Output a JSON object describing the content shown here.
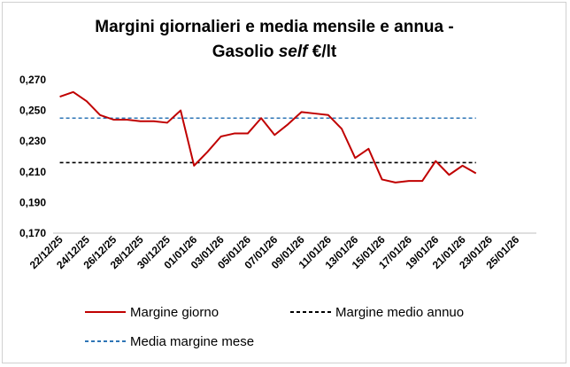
{
  "chart_data": {
    "type": "line",
    "title_line1": "Margini giornalieri e media mensile e annua -",
    "title_line2_prefix": "Gasolio ",
    "title_line2_italic": "self",
    "title_line2_suffix": " €/lt",
    "xlabel": "",
    "ylabel": "",
    "ylim": [
      0.17,
      0.27
    ],
    "yticks": [
      "0,270",
      "0,250",
      "0,230",
      "0,210",
      "0,190",
      "0,170"
    ],
    "ytick_values": [
      0.27,
      0.25,
      0.23,
      0.21,
      0.19,
      0.17
    ],
    "x_dates": [
      "22/12/25",
      "23/12/25",
      "24/12/25",
      "25/12/25",
      "26/12/25",
      "27/12/25",
      "28/12/25",
      "29/12/25",
      "30/12/25",
      "31/12/25",
      "01/01/26",
      "02/01/26",
      "03/01/26",
      "04/01/26",
      "05/01/26",
      "06/01/26",
      "07/01/26",
      "08/01/26",
      "09/01/26",
      "10/01/26",
      "11/01/26",
      "12/01/26",
      "13/01/26",
      "14/01/26",
      "15/01/26",
      "16/01/26",
      "17/01/26",
      "18/01/26",
      "19/01/26",
      "20/01/26",
      "21/01/26",
      "22/01/26",
      "23/01/26",
      "24/01/26",
      "25/01/26",
      "26/01/26"
    ],
    "xtick_labels": [
      "22/12/25",
      "24/12/25",
      "26/12/25",
      "28/12/25",
      "30/12/25",
      "01/01/26",
      "03/01/26",
      "05/01/26",
      "07/01/26",
      "09/01/26",
      "11/01/26",
      "13/01/26",
      "15/01/26",
      "17/01/26",
      "19/01/26",
      "21/01/26",
      "23/01/26",
      "25/01/26"
    ],
    "series": [
      {
        "name": "Margine giorno",
        "color": "#c00000",
        "style": "solid",
        "values": [
          0.259,
          0.262,
          0.256,
          0.247,
          0.244,
          0.244,
          0.243,
          0.243,
          0.242,
          0.25,
          0.214,
          0.223,
          0.233,
          0.235,
          0.235,
          0.245,
          0.234,
          0.241,
          0.249,
          0.248,
          0.247,
          0.238,
          0.219,
          0.225,
          0.205,
          0.203,
          0.204,
          0.204,
          0.217,
          0.208,
          0.214,
          0.209,
          null,
          null,
          null,
          null
        ]
      },
      {
        "name": "Margine medio annuo",
        "color": "#000000",
        "style": "dashed",
        "values": [
          0.216,
          0.216,
          0.216,
          0.216,
          0.216,
          0.216,
          0.216,
          0.216,
          0.216,
          0.216,
          0.216,
          0.216,
          0.216,
          0.216,
          0.216,
          0.216,
          0.216,
          0.216,
          0.216,
          0.216,
          0.216,
          0.216,
          0.216,
          0.216,
          0.216,
          0.216,
          0.216,
          0.216,
          0.216,
          0.216,
          0.216,
          0.216,
          null,
          null,
          null,
          null
        ]
      },
      {
        "name": "Media margine mese",
        "color": "#2e75b6",
        "style": "dashed",
        "values": [
          0.245,
          0.245,
          0.245,
          0.245,
          0.245,
          0.245,
          0.245,
          0.245,
          0.245,
          0.245,
          0.245,
          0.245,
          0.245,
          0.245,
          0.245,
          0.245,
          0.245,
          0.245,
          0.245,
          0.245,
          0.245,
          0.245,
          0.245,
          0.245,
          0.245,
          0.245,
          0.245,
          0.245,
          0.245,
          0.245,
          0.245,
          0.245,
          null,
          null,
          null,
          null
        ]
      }
    ],
    "grid": false,
    "legend_position": "bottom"
  }
}
